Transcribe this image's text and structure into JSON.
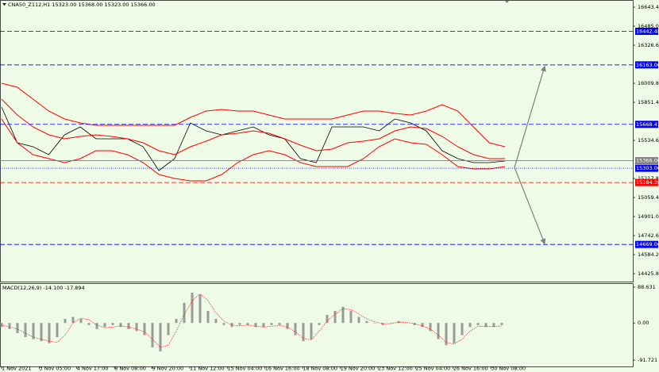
{
  "chart_data": [
    {
      "type": "line",
      "title": "CNA50_Z112,H1  15323.00 15368.00 15323.00 15366.00",
      "ylim": [
        14360,
        16703
      ],
      "yticks": [
        {
          "value": 16643.4,
          "label": "16643.40"
        },
        {
          "value": 16485,
          "label": "16485.00"
        },
        {
          "value": 16326.6,
          "label": "16326.60"
        },
        {
          "value": 16009.8,
          "label": "16009.80"
        },
        {
          "value": 15851.4,
          "label": "15851.40"
        },
        {
          "value": 15534.6,
          "label": "15534.60"
        },
        {
          "value": 15217.8,
          "label": "15217.80"
        },
        {
          "value": 15059.4,
          "label": "15059.40"
        },
        {
          "value": 14901,
          "label": "14901.00"
        },
        {
          "value": 14742.6,
          "label": "14742.60"
        },
        {
          "value": 14584.2,
          "label": "14584.20"
        },
        {
          "value": 14425.8,
          "label": "14425.80"
        }
      ],
      "series": [
        {
          "color": "#000000",
          "values": [
            15812,
            15515,
            15482,
            15416,
            15581,
            15647,
            15548,
            15548,
            15548,
            15482,
            15284,
            15383,
            15680,
            15614,
            15581,
            15614,
            15647,
            15581,
            15548,
            15383,
            15350,
            15647,
            15647,
            15647,
            15614,
            15713,
            15680,
            15614,
            15449,
            15383,
            15350,
            15350,
            15363
          ]
        },
        {
          "color": "#ff0000",
          "values": [
            16010,
            15977,
            15878,
            15779,
            15713,
            15680,
            15660,
            15660,
            15660,
            15660,
            15660,
            15660,
            15726,
            15779,
            15792,
            15779,
            15779,
            15746,
            15713,
            15713,
            15713,
            15713,
            15746,
            15779,
            15779,
            15759,
            15746,
            15779,
            15832,
            15779,
            15647,
            15515,
            15482
          ]
        },
        {
          "color": "#ff0000",
          "values": [
            15878,
            15746,
            15647,
            15581,
            15548,
            15568,
            15581,
            15568,
            15548,
            15515,
            15449,
            15416,
            15482,
            15528,
            15581,
            15594,
            15614,
            15594,
            15548,
            15495,
            15449,
            15462,
            15515,
            15528,
            15548,
            15614,
            15647,
            15634,
            15568,
            15482,
            15416,
            15383,
            15383
          ]
        },
        {
          "color": "#ff0000",
          "values": [
            15713,
            15515,
            15416,
            15383,
            15350,
            15383,
            15449,
            15449,
            15416,
            15350,
            15251,
            15218,
            15198,
            15198,
            15251,
            15350,
            15416,
            15449,
            15416,
            15350,
            15317,
            15317,
            15317,
            15383,
            15482,
            15548,
            15515,
            15502,
            15416,
            15317,
            15297,
            15297,
            15317
          ]
        }
      ],
      "levels": [
        {
          "value": 16442.48,
          "label": "16442.48",
          "color": "#0000ff",
          "style": "dashed"
        },
        {
          "value": 16163,
          "label": "16163.00",
          "color": "#0000ff",
          "style": "dashed",
          "arrow": true
        },
        {
          "value": 15668.41,
          "label": "15668.41",
          "color": "#0000ff",
          "style": "dashed"
        },
        {
          "value": 15366,
          "label": "15366.00",
          "color": "#808080",
          "style": "solid"
        },
        {
          "value": 15303,
          "label": "15303.00",
          "color": "#0000ff",
          "style": "dotted"
        },
        {
          "value": 15184.26,
          "label": "15184.26",
          "color": "#ff0000",
          "style": "dashed"
        },
        {
          "value": 14669.06,
          "label": "14669.06",
          "color": "#0000ff",
          "style": "dashed",
          "arrow": true
        }
      ]
    },
    {
      "type": "bar",
      "title": "MACD(12,26,9) -14.100 -17.894",
      "ylim": [
        -107.4,
        98.4
      ],
      "yticks": [
        88.631,
        {
          "value": 0,
          "label": "0.00"
        },
        -91.721
      ],
      "series": [
        {
          "type": "bar",
          "color": "#9a9a9a",
          "values": [
            -10,
            -15,
            -25,
            -35,
            -40,
            -45,
            -50,
            -35,
            10,
            15,
            10,
            -5,
            -15,
            -10,
            -5,
            -10,
            -15,
            -20,
            -30,
            -60,
            -70,
            -30,
            10,
            50,
            75,
            70,
            30,
            10,
            -5,
            -10,
            -5,
            -5,
            -10,
            -10,
            -5,
            -5,
            -15,
            -30,
            -45,
            -40,
            -5,
            20,
            30,
            40,
            30,
            15,
            5,
            0,
            -5,
            0,
            5,
            0,
            -5,
            -10,
            -20,
            -40,
            -55,
            -50,
            -30,
            -10,
            -5,
            -10,
            -10,
            -5
          ]
        },
        {
          "type": "line",
          "color": "#ff0000",
          "values": [
            -5,
            -10,
            -15,
            -25,
            -35,
            -40,
            -45,
            -48,
            -30,
            0,
            12,
            8,
            -5,
            -12,
            -10,
            -7,
            -10,
            -15,
            -22,
            -40,
            -60,
            -55,
            -20,
            20,
            55,
            72,
            55,
            25,
            5,
            -5,
            -7,
            -5,
            -8,
            -10,
            -8,
            -6,
            -10,
            -22,
            -38,
            -42,
            -20,
            5,
            22,
            35,
            33,
            22,
            10,
            3,
            -2,
            -2,
            2,
            2,
            -2,
            -7,
            -15,
            -30,
            -48,
            -52,
            -40,
            -20,
            -8,
            -8,
            -9,
            -7
          ]
        }
      ],
      "x_labels": [
        "1 Nov 2021",
        "3 Nov 05:00",
        "4 Nov 17:00",
        "8 Nov 08:00",
        "9 Nov 20:00",
        "11 Nov 12:00",
        "15 Nov 04:00",
        "16 Nov 16:00",
        "18 Nov 08:00",
        "19 Nov 20:00",
        "23 Nov 12:00",
        "25 Nov 04:00",
        "26 Nov 16:00",
        "30 Nov 08:00"
      ]
    }
  ]
}
